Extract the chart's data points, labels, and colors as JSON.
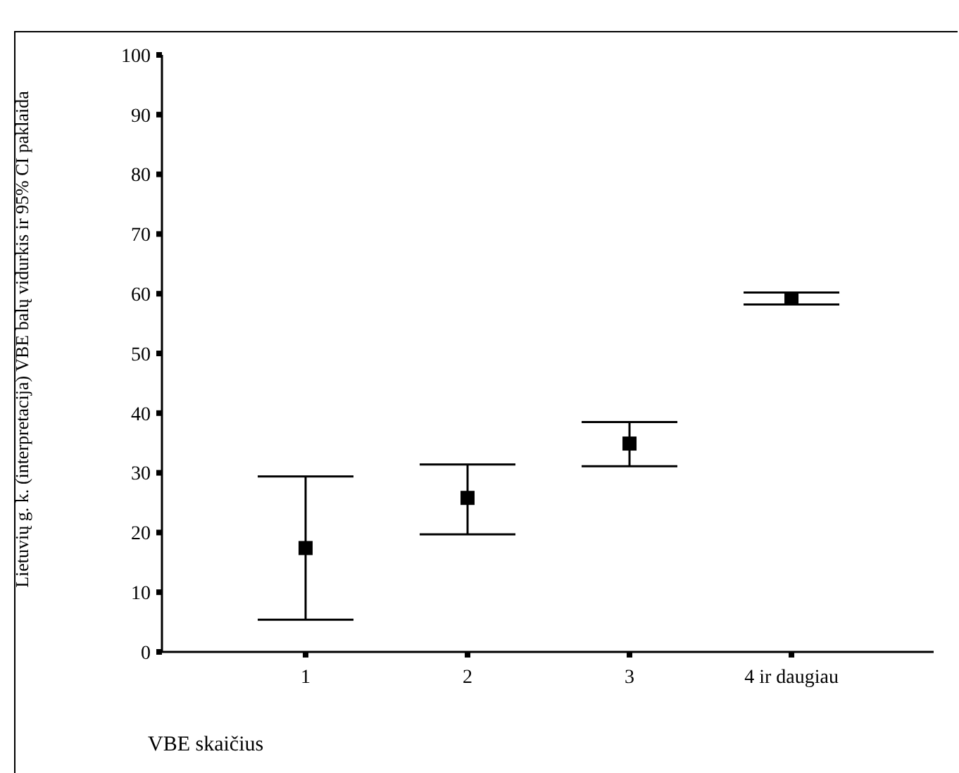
{
  "chart_data": {
    "type": "scatter",
    "xlabel": "VBE skaičius",
    "ylabel": "Lietuvių g. k. (interpretacija) VBE balų vidurkis ir 95% CI paklaida",
    "categories": [
      "1",
      "2",
      "3",
      "4 ir daugiau"
    ],
    "series": [
      {
        "color": "#000000",
        "values": [
          17.4,
          25.8,
          34.9,
          59.2
        ],
        "errors": [
          [
            5.4,
            29.4
          ],
          [
            19.7,
            31.4
          ],
          [
            31.1,
            38.5
          ],
          [
            58.2,
            60.2
          ]
        ]
      }
    ],
    "ylim": [
      0,
      100
    ],
    "yticks": [
      0,
      10,
      20,
      30,
      40,
      50,
      60,
      70,
      80,
      90,
      100
    ],
    "marker": "square",
    "grid": false,
    "legend": false
  }
}
